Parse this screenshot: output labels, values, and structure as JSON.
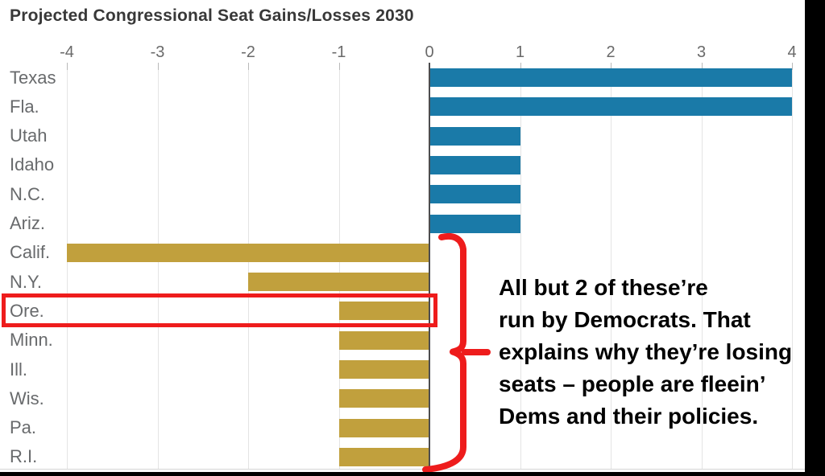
{
  "title": "Projected Congressional Seat Gains/Losses 2030",
  "chart_data": {
    "type": "bar",
    "orientation": "horizontal",
    "title": "Projected Congressional Seat Gains/Losses 2030",
    "categories": [
      "Texas",
      "Fla.",
      "Utah",
      "Idaho",
      "N.C.",
      "Ariz.",
      "Calif.",
      "N.Y.",
      "Ore.",
      "Minn.",
      "Ill.",
      "Wis.",
      "Pa.",
      "R.I."
    ],
    "values": [
      4,
      4,
      1,
      1,
      1,
      1,
      -4,
      -2,
      -1,
      -1,
      -1,
      -1,
      -1,
      -1
    ],
    "xlabel": "",
    "ylabel": "",
    "xlim": [
      -4,
      4
    ],
    "x_ticks": [
      "-4",
      "-3",
      "-2",
      "-1",
      "0",
      "1",
      "2",
      "3",
      "4"
    ],
    "grid": true,
    "legend": "none",
    "positive_color": "#1a7aa8",
    "negative_color": "#c1a03d"
  },
  "annotation": {
    "lines": [
      "All but 2 of these’re",
      "run by Democrats. That",
      "explains why they’re losing",
      "seats – people are fleein’",
      "Dems and their policies."
    ],
    "text_color": "#000000",
    "highlight_color": "#ee1c1c",
    "highlighted_state": "Ore."
  }
}
